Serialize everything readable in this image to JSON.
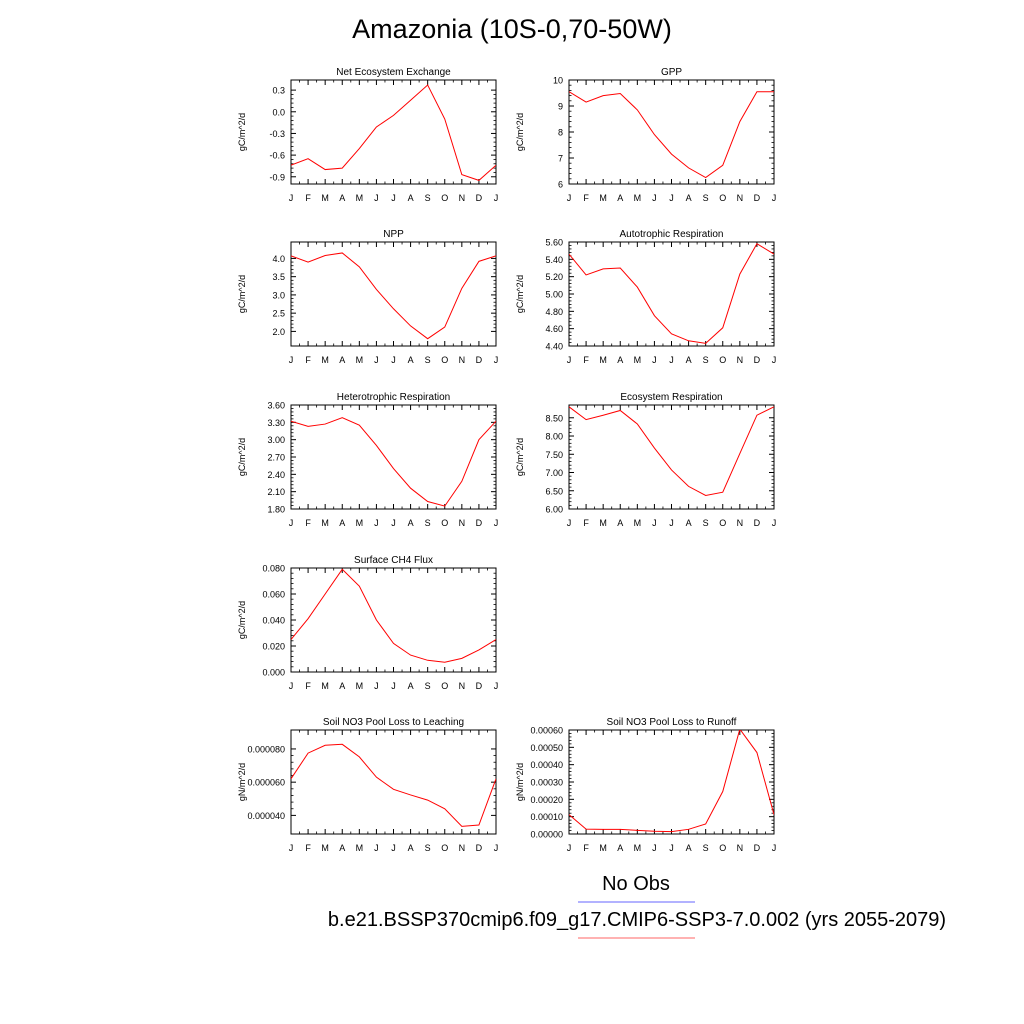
{
  "title": "Amazonia (10S-0,70-50W)",
  "legend": {
    "obs_label": "No Obs",
    "obs_color": "#6666ff",
    "case_label": "b.e21.BSSP370cmip6.f09_g17.CMIP6-SSP3-7.0.002 (yrs 2055-2079)",
    "case_color": "#ff6666"
  },
  "line_color": "#ff0000",
  "month_labels": [
    "J",
    "F",
    "M",
    "A",
    "M",
    "J",
    "J",
    "A",
    "S",
    "O",
    "N",
    "D",
    "J"
  ],
  "chart_data": [
    {
      "type": "line",
      "title": "Net Ecosystem Exchange",
      "ylabel": "gC/m^2/d",
      "ylim": [
        -1.0,
        0.44
      ],
      "yticks": [
        -0.9,
        -0.6,
        -0.3,
        0.0,
        0.3
      ],
      "ytick_labels": [
        "-0.9",
        "-0.6",
        "-0.3",
        "0.0",
        "0.3"
      ],
      "x": [
        "J",
        "F",
        "M",
        "A",
        "M",
        "J",
        "J",
        "A",
        "S",
        "O",
        "N",
        "D",
        "J"
      ],
      "series": [
        {
          "values": [
            -0.74,
            -0.65,
            -0.8,
            -0.78,
            -0.51,
            -0.21,
            -0.05,
            0.16,
            0.37,
            -0.1,
            -0.87,
            -0.95,
            -0.74
          ]
        }
      ]
    },
    {
      "type": "line",
      "title": "GPP",
      "ylabel": "gC/m^2/d",
      "ylim": [
        6,
        10
      ],
      "yticks": [
        6,
        7,
        8,
        9,
        10
      ],
      "ytick_labels": [
        "6",
        "7",
        "8",
        "9",
        "10"
      ],
      "x": [
        "J",
        "F",
        "M",
        "A",
        "M",
        "J",
        "J",
        "A",
        "S",
        "O",
        "N",
        "D",
        "J"
      ],
      "series": [
        {
          "values": [
            9.55,
            9.15,
            9.4,
            9.48,
            8.85,
            7.9,
            7.15,
            6.62,
            6.25,
            6.72,
            8.4,
            9.55,
            9.55
          ]
        }
      ]
    },
    {
      "type": "line",
      "title": "NPP",
      "ylabel": "gC/m^2/d",
      "ylim": [
        1.6,
        4.45
      ],
      "yticks": [
        2.0,
        2.5,
        3.0,
        3.5,
        4.0
      ],
      "ytick_labels": [
        "2.0",
        "2.5",
        "3.0",
        "3.5",
        "4.0"
      ],
      "x": [
        "J",
        "F",
        "M",
        "A",
        "M",
        "J",
        "J",
        "A",
        "S",
        "O",
        "N",
        "D",
        "J"
      ],
      "series": [
        {
          "values": [
            4.07,
            3.9,
            4.08,
            4.15,
            3.77,
            3.15,
            2.62,
            2.15,
            1.8,
            2.12,
            3.18,
            3.92,
            4.07
          ]
        }
      ]
    },
    {
      "type": "line",
      "title": "Autotrophic Respiration",
      "ylabel": "gC/m^2/d",
      "ylim": [
        4.4,
        5.6
      ],
      "yticks": [
        4.4,
        4.6,
        4.8,
        5.0,
        5.2,
        5.4,
        5.6
      ],
      "ytick_labels": [
        "4.40",
        "4.60",
        "4.80",
        "5.00",
        "5.20",
        "5.40",
        "5.60"
      ],
      "x": [
        "J",
        "F",
        "M",
        "A",
        "M",
        "J",
        "J",
        "A",
        "S",
        "O",
        "N",
        "D",
        "J"
      ],
      "series": [
        {
          "values": [
            5.46,
            5.22,
            5.29,
            5.3,
            5.08,
            4.75,
            4.54,
            4.46,
            4.43,
            4.61,
            5.23,
            5.58,
            5.46
          ]
        }
      ]
    },
    {
      "type": "line",
      "title": "Heterotrophic Respiration",
      "ylabel": "gC/m^2/d",
      "ylim": [
        1.8,
        3.6
      ],
      "yticks": [
        1.8,
        2.1,
        2.4,
        2.7,
        3.0,
        3.3,
        3.6
      ],
      "ytick_labels": [
        "1.80",
        "2.10",
        "2.40",
        "2.70",
        "3.00",
        "3.30",
        "3.60"
      ],
      "x": [
        "J",
        "F",
        "M",
        "A",
        "M",
        "J",
        "J",
        "A",
        "S",
        "O",
        "N",
        "D",
        "J"
      ],
      "series": [
        {
          "values": [
            3.32,
            3.23,
            3.27,
            3.38,
            3.25,
            2.9,
            2.5,
            2.16,
            1.93,
            1.85,
            2.28,
            3.0,
            3.32
          ]
        }
      ]
    },
    {
      "type": "line",
      "title": "Ecosystem Respiration",
      "ylabel": "gC/m^2/d",
      "ylim": [
        6.0,
        8.85
      ],
      "yticks": [
        6.0,
        6.5,
        7.0,
        7.5,
        8.0,
        8.5
      ],
      "ytick_labels": [
        "6.00",
        "6.50",
        "7.00",
        "7.50",
        "8.00",
        "8.50"
      ],
      "x": [
        "J",
        "F",
        "M",
        "A",
        "M",
        "J",
        "J",
        "A",
        "S",
        "O",
        "N",
        "D",
        "J"
      ],
      "series": [
        {
          "values": [
            8.8,
            8.45,
            8.57,
            8.7,
            8.33,
            7.67,
            7.07,
            6.62,
            6.37,
            6.46,
            7.52,
            8.57,
            8.8
          ]
        }
      ]
    },
    {
      "type": "line",
      "title": "Surface CH4 Flux",
      "ylabel": "gC/m^2/d",
      "ylim": [
        0.0,
        0.08
      ],
      "yticks": [
        0.0,
        0.02,
        0.04,
        0.06,
        0.08
      ],
      "ytick_labels": [
        "0.000",
        "0.020",
        "0.040",
        "0.060",
        "0.080"
      ],
      "x": [
        "J",
        "F",
        "M",
        "A",
        "M",
        "J",
        "J",
        "A",
        "S",
        "O",
        "N",
        "D",
        "J"
      ],
      "series": [
        {
          "values": [
            0.025,
            0.041,
            0.06,
            0.079,
            0.066,
            0.04,
            0.022,
            0.013,
            0.009,
            0.0075,
            0.0105,
            0.017,
            0.025
          ]
        }
      ]
    },
    {
      "type": "line",
      "title": "Soil NO3 Pool Loss to Leaching",
      "ylabel": "gN/m^2/d",
      "ylim": [
        2.88e-05,
        9.14e-05
      ],
      "yticks": [
        4e-05,
        6e-05,
        8e-05
      ],
      "ytick_labels": [
        "0.000040",
        "0.000060",
        "0.000080"
      ],
      "x": [
        "J",
        "F",
        "M",
        "A",
        "M",
        "J",
        "J",
        "A",
        "S",
        "O",
        "N",
        "D",
        "J"
      ],
      "series": [
        {
          "values": [
            6.2e-05,
            7.75e-05,
            8.22e-05,
            8.28e-05,
            7.52e-05,
            6.3e-05,
            5.57e-05,
            5.23e-05,
            4.92e-05,
            4.4e-05,
            3.34e-05,
            3.42e-05,
            6.2e-05
          ]
        }
      ]
    },
    {
      "type": "line",
      "title": "Soil NO3 Pool Loss to Runoff",
      "ylabel": "gN/m^2/d",
      "ylim": [
        0.0,
        0.0006
      ],
      "yticks": [
        0.0,
        0.0001,
        0.0002,
        0.0003,
        0.0004,
        0.0005,
        0.0006
      ],
      "ytick_labels": [
        "0.00000",
        "0.00010",
        "0.00020",
        "0.00030",
        "0.00040",
        "0.00050",
        "0.00060"
      ],
      "x": [
        "J",
        "F",
        "M",
        "A",
        "M",
        "J",
        "J",
        "A",
        "S",
        "O",
        "N",
        "D",
        "J"
      ],
      "series": [
        {
          "values": [
            0.000112,
            2.8e-05,
            2.7e-05,
            2.7e-05,
            2.1e-05,
            1.6e-05,
            1.4e-05,
            2.7e-05,
            5.8e-05,
            0.000245,
            0.000605,
            0.00047,
            0.000112
          ]
        }
      ]
    }
  ]
}
